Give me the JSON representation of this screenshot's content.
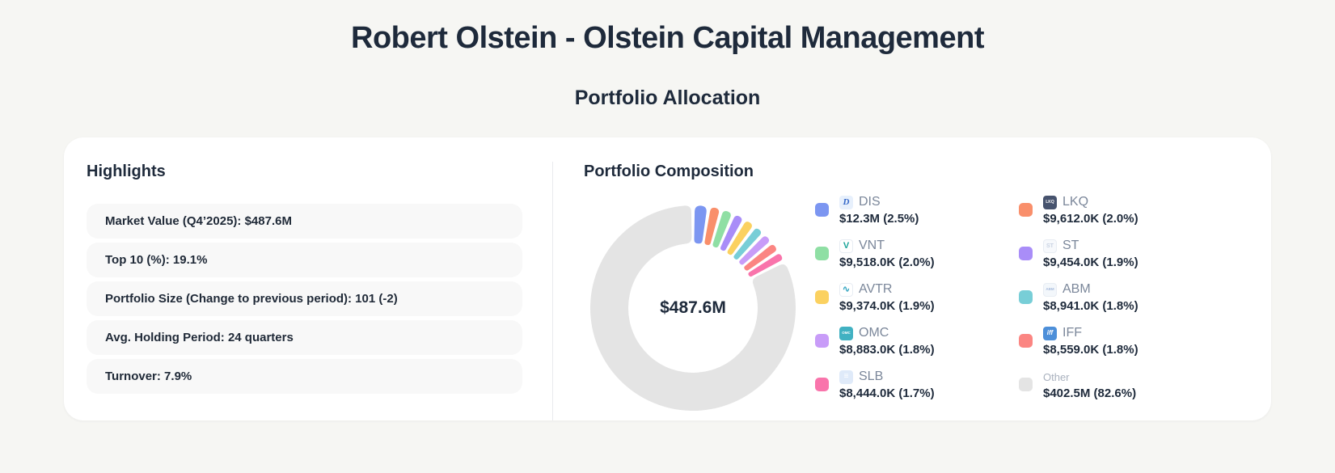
{
  "page": {
    "title": "Robert Olstein - Olstein Capital Management",
    "subtitle": "Portfolio Allocation"
  },
  "highlights": {
    "heading": "Highlights",
    "items": [
      "Market Value (Q4’2025): $487.6M",
      "Top 10 (%): 19.1%",
      "Portfolio Size (Change to previous period): 101 (-2)",
      "Avg. Holding Period: 24 quarters",
      "Turnover: 7.9%"
    ]
  },
  "composition": {
    "heading": "Portfolio Composition",
    "center_label": "$487.6M"
  },
  "chart_data": {
    "type": "pie",
    "donut": true,
    "title": "Portfolio Composition",
    "center_label": "$487.6M",
    "total_label": "$487.6M",
    "legend_position": "right",
    "start_angle_deg": 0,
    "series": [
      {
        "name": "DIS",
        "value_label": "$12.3M (2.5%)",
        "pct": 2.5,
        "color": "#7C96F1",
        "logo": {
          "text": "D",
          "bg": "#E7F0FC",
          "fg": "#3568C9",
          "fs": 11,
          "italic": true,
          "serif": true
        }
      },
      {
        "name": "LKQ",
        "value_label": "$9,612.0K (2.0%)",
        "pct": 2.0,
        "color": "#F98F6B",
        "logo": {
          "text": "LKQ",
          "bg": "#47536E",
          "fg": "#FFFFFF",
          "fs": 5
        }
      },
      {
        "name": "VNT",
        "value_label": "$9,518.0K (2.0%)",
        "pct": 2.0,
        "color": "#8FDFA4",
        "logo": {
          "text": "V",
          "bg": "#FFFFFF",
          "fg": "#17A398",
          "fs": 11,
          "border": true
        }
      },
      {
        "name": "ST",
        "value_label": "$9,454.0K (1.9%)",
        "pct": 1.9,
        "color": "#A98DF8",
        "logo": {
          "text": "ST",
          "bg": "#F7F9FC",
          "fg": "#C8D2E2",
          "fs": 7,
          "border": true
        }
      },
      {
        "name": "AVTR",
        "value_label": "$9,374.0K (1.9%)",
        "pct": 1.9,
        "color": "#FBD160",
        "logo": {
          "text": "∿",
          "bg": "#FFFFFF",
          "fg": "#2FA3C0",
          "fs": 11,
          "border": true
        }
      },
      {
        "name": "ABM",
        "value_label": "$8,941.0K (1.8%)",
        "pct": 1.8,
        "color": "#78CED7",
        "logo": {
          "text": "ABM",
          "bg": "#F3F7FB",
          "fg": "#A7BBDC",
          "fs": 4.5,
          "border": true
        }
      },
      {
        "name": "OMC",
        "value_label": "$8,883.0K (1.8%)",
        "pct": 1.8,
        "color": "#C89CF8",
        "logo": {
          "text": "OMC",
          "bg": "#41B1C2",
          "fg": "#FFFFFF",
          "fs": 4.5
        }
      },
      {
        "name": "IFF",
        "value_label": "$8,559.0K (1.8%)",
        "pct": 1.8,
        "color": "#FB8582",
        "logo": {
          "text": "iff",
          "bg": "#4D8FD9",
          "fg": "#FFFFFF",
          "fs": 8,
          "italic": true
        }
      },
      {
        "name": "SLB",
        "value_label": "$8,444.0K (1.7%)",
        "pct": 1.7,
        "color": "#F974AB",
        "logo": {
          "text": "≡",
          "bg": "#DFEAF9",
          "fg": "#FFFFFF",
          "fs": 10
        }
      },
      {
        "name": "Other",
        "value_label": "$402.5M (82.6%)",
        "pct": 82.6,
        "color": "#E4E4E4",
        "logo": null,
        "muted": true
      }
    ]
  },
  "colors": {
    "page_bg": "#F6F6F3",
    "card_bg": "#FFFFFF",
    "heading": "#1E2A3B",
    "row_bg": "#F8F8F8",
    "ticker": "#7B879A",
    "divider": "#E9EAEE"
  }
}
